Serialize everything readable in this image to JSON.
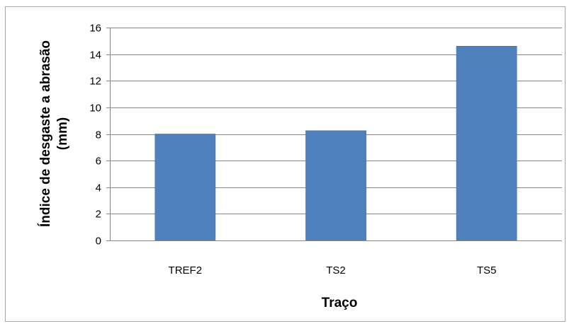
{
  "chart_data": {
    "type": "bar",
    "categories": [
      "TREF2",
      "TS2",
      "TS5"
    ],
    "values": [
      8.0,
      8.25,
      14.6
    ],
    "xlabel": "Traço",
    "ylabel_line1": "Índice de desgaste a abrasão",
    "ylabel_line2": "(mm)",
    "ylim": [
      0,
      16
    ],
    "yticks": [
      0,
      2,
      4,
      6,
      8,
      10,
      12,
      14,
      16
    ],
    "grid": true,
    "legend": "none",
    "colors": {
      "bar": "#4f81bd",
      "bar_edge": "#3f6fa6",
      "grid": "#868686",
      "axis": "#868686"
    }
  }
}
